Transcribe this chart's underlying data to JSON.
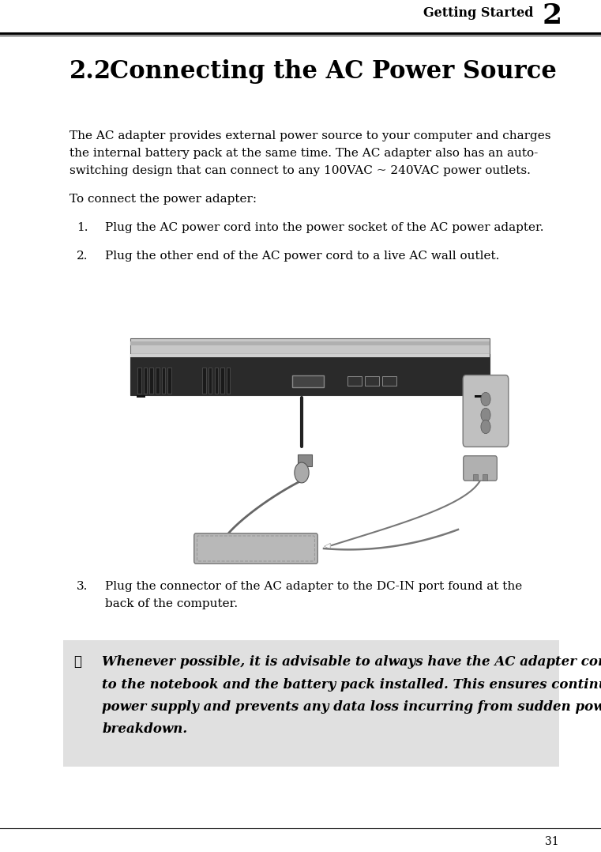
{
  "page_width": 7.61,
  "page_height": 10.78,
  "bg_color": "#ffffff",
  "header_text": "Getting Started",
  "header_number": "2",
  "section_number": "2.2",
  "section_title": "Connecting the AC Power Source",
  "body_text_1_line1": "The AC adapter provides external power source to your computer and charges",
  "body_text_1_line2": "the internal battery pack at the same time. The AC adapter also has an auto-",
  "body_text_1_line3": "switching design that can connect to any 100VAC ~ 240VAC power outlets.",
  "body_text_2": "To connect the power adapter:",
  "step1_num": "1.",
  "step1_text": "Plug the AC power cord into the power socket of the AC power adapter.",
  "step2_num": "2.",
  "step2_text": "Plug the other end of the AC power cord to a live AC wall outlet.",
  "step3_num": "3.",
  "step3_line1": "Plug the connector of the AC adapter to the DC-IN port found at the",
  "step3_line2": "back of the computer.",
  "note_icon": "☞",
  "note_line1": "Whenever possible, it is advisable to always have the AC adapter connected",
  "note_line2": "to the notebook and the battery pack installed. This ensures continuous",
  "note_line3": "power supply and prevents any data loss incurring from sudden power",
  "note_line4": "breakdown.",
  "footer_number": "31",
  "text_color": "#000000",
  "note_bg_color": "#e0e0e0",
  "lm": 0.115,
  "rm": 0.93,
  "step_indent": 0.175,
  "note_indent": 0.175
}
